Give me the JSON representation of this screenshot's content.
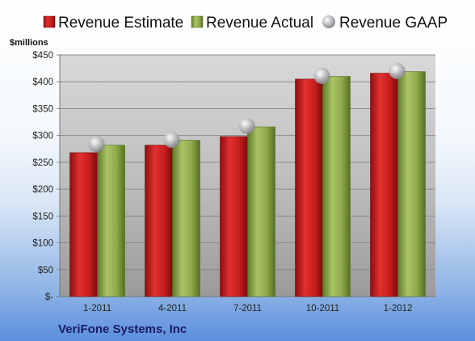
{
  "chart_data": {
    "type": "bar",
    "categories": [
      "1-2011",
      "4-2011",
      "7-2011",
      "10-2011",
      "1-2012"
    ],
    "series": [
      {
        "name": "Revenue Estimate",
        "kind": "bar",
        "color": "#cc2222",
        "values": [
          268,
          282,
          298,
          405,
          416
        ]
      },
      {
        "name": "Revenue Actual",
        "kind": "bar",
        "color": "#8faa4a",
        "values": [
          282,
          291,
          316,
          410,
          419
        ]
      },
      {
        "name": "Revenue GAAP",
        "kind": "marker",
        "color": "#b8b8bc",
        "values": [
          284,
          292,
          318,
          411,
          420
        ]
      }
    ],
    "yticks": [
      "$-",
      "$50",
      "$100",
      "$150",
      "$200",
      "$250",
      "$300",
      "$350",
      "$400",
      "$450"
    ],
    "ylim": [
      0,
      450
    ],
    "ylabel": "$millions",
    "grid": true,
    "legend_position": "top"
  },
  "company": "VeriFone Systems, Inc"
}
